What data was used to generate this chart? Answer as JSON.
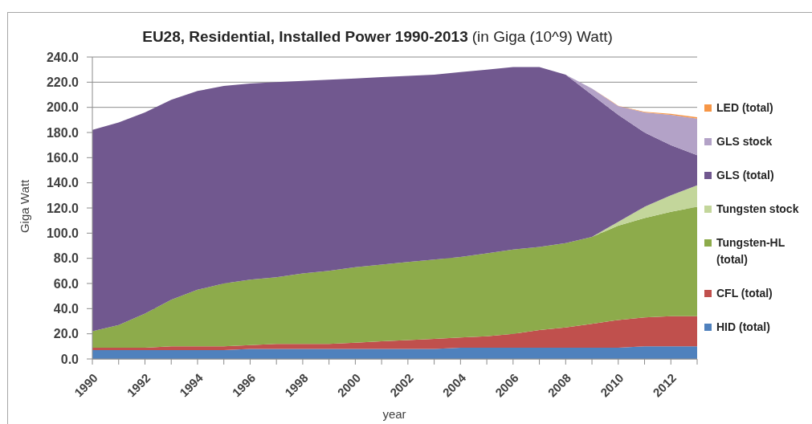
{
  "chart_data": {
    "type": "area",
    "title": "EU28, Residential, Installed Power 1990-2013",
    "subtitle": "(in Giga (10^9) Watt)",
    "xlabel": "year",
    "ylabel": "Giga Watt",
    "stacked": true,
    "grid": "y",
    "legend": "right",
    "x": [
      1990,
      1991,
      1992,
      1993,
      1994,
      1995,
      1996,
      1997,
      1998,
      1999,
      2000,
      2001,
      2002,
      2003,
      2004,
      2005,
      2006,
      2007,
      2008,
      2009,
      2010,
      2011,
      2012,
      2013
    ],
    "xlim": [
      1990,
      2013
    ],
    "xticks": [
      1990,
      {
        "value": 1991,
        "label": null
      },
      1992,
      {
        "value": 1993,
        "label": null
      },
      1994,
      {
        "value": 1995,
        "label": null
      },
      1996,
      {
        "value": 1997,
        "label": null
      },
      1998,
      {
        "value": 1999,
        "label": null
      },
      2000,
      {
        "value": 2001,
        "label": null
      },
      2002,
      {
        "value": 2003,
        "label": null
      },
      2004,
      {
        "value": 2005,
        "label": null
      },
      2006,
      {
        "value": 2007,
        "label": null
      },
      2008,
      {
        "value": 2009,
        "label": null
      },
      2010,
      {
        "value": 2011,
        "label": null
      },
      2012,
      {
        "value": 2013,
        "label": null
      }
    ],
    "ylim": [
      0,
      240
    ],
    "yticks": [
      {
        "value": 0,
        "label": "0.0"
      },
      {
        "value": 20,
        "label": "20.0"
      },
      {
        "value": 40,
        "label": "40.0"
      },
      {
        "value": 60,
        "label": "60.0"
      },
      {
        "value": 80,
        "label": "80.0"
      },
      {
        "value": 100,
        "label": "100.0"
      },
      {
        "value": 120,
        "label": "120.0"
      },
      {
        "value": 140,
        "label": "140.0"
      },
      {
        "value": 160,
        "label": "160.0"
      },
      {
        "value": 180,
        "label": "180.0"
      },
      {
        "value": 200,
        "label": "200.0"
      },
      {
        "value": 220,
        "label": "220.0"
      },
      {
        "value": 240,
        "label": "240.0"
      }
    ],
    "series": [
      {
        "name": "HID (total)",
        "color": "#4f81bd",
        "values": [
          7,
          7,
          7,
          7,
          7,
          7,
          8,
          8,
          8,
          8,
          8,
          8,
          8,
          8,
          9,
          9,
          9,
          9,
          9,
          9,
          9,
          10,
          10,
          10
        ]
      },
      {
        "name": "CFL (total)",
        "color": "#c0504d",
        "values": [
          2,
          2,
          2,
          3,
          3,
          3,
          3,
          4,
          4,
          4,
          5,
          6,
          7,
          8,
          8,
          9,
          11,
          14,
          16,
          19,
          22,
          23,
          24,
          24
        ]
      },
      {
        "name": "Tungsten-HL (total)",
        "color": "#8dab4b",
        "values": [
          13,
          18,
          27,
          37,
          45,
          50,
          52,
          53,
          56,
          58,
          60,
          61,
          62,
          63,
          64,
          66,
          67,
          66,
          67,
          69,
          75,
          79,
          83,
          87
        ]
      },
      {
        "name": "Tungsten stock",
        "color": "#c3d69b",
        "values": [
          0,
          0,
          0,
          0,
          0,
          0,
          0,
          0,
          0,
          0,
          0,
          0,
          0,
          0,
          0,
          0,
          0,
          0,
          0,
          0,
          3,
          9,
          13,
          17
        ]
      },
      {
        "name": "GLS (total)",
        "color": "#71588f",
        "values": [
          160,
          161,
          160,
          159,
          158,
          157,
          156,
          155,
          153,
          152,
          150,
          149,
          148,
          147,
          147,
          146,
          145,
          143,
          134,
          113,
          85,
          59,
          40,
          24
        ]
      },
      {
        "name": "GLS stock",
        "color": "#b3a2c7",
        "values": [
          0,
          0,
          0,
          0,
          0,
          0,
          0,
          0,
          0,
          0,
          0,
          0,
          0,
          0,
          0,
          0,
          0,
          0,
          0,
          5,
          7,
          16,
          24,
          29
        ]
      },
      {
        "name": "LED (total)",
        "color": "#f79646",
        "values": [
          0,
          0,
          0,
          0,
          0,
          0,
          0,
          0,
          0,
          0,
          0,
          0,
          0,
          0,
          0,
          0,
          0,
          0,
          0,
          0,
          0.3,
          0.5,
          0.8,
          1.2
        ]
      }
    ]
  }
}
